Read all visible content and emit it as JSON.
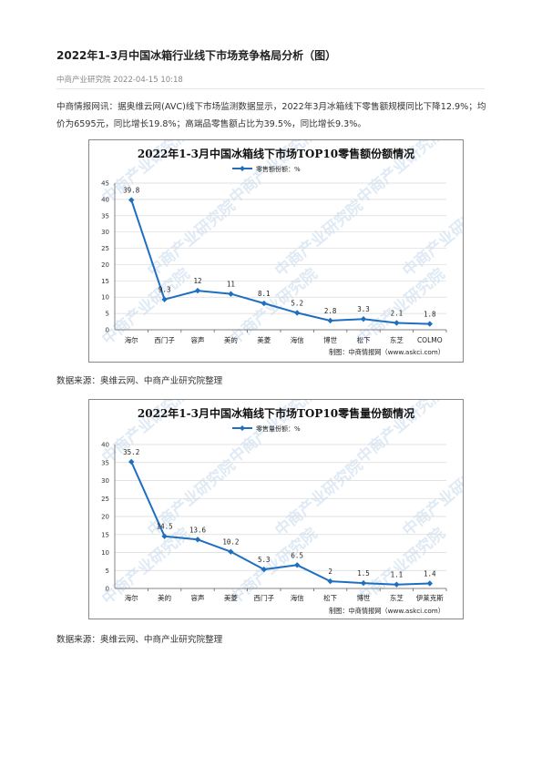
{
  "article": {
    "title": "2022年1-3月中国冰箱行业线下市场竞争格局分析（图）",
    "source_name": "中商产业研究院",
    "date": "2022-04-15 10:18",
    "paragraph": "中商情报网讯：据奥维云网(AVC)线下市场监测数据显示，2022年3月冰箱线下零售额规模同比下降12.9%；均价为6595元，同比增长19.8%；高端品零售额占比为39.5%，同比增长9.3%。",
    "data_source_1": "数据来源：奥维云网、中商产业研究院整理",
    "data_source_2": "数据来源：奥维云网、中商产业研究院整理"
  },
  "watermark": {
    "text": "中商产业研究院"
  },
  "colors": {
    "line": "#1f6fc0",
    "grid": "#d9d9d9",
    "frame": "#888888"
  },
  "chart_data": [
    {
      "type": "line",
      "title": "2022年1-3月中国冰箱线下市场TOP10零售额份额情况",
      "legend": "零售额份额：%",
      "legend_position": "top",
      "categories": [
        "海尔",
        "西门子",
        "容声",
        "美的",
        "美菱",
        "海信",
        "博世",
        "松下",
        "东芝",
        "COLMO"
      ],
      "values": [
        39.8,
        9.3,
        12,
        11,
        8.1,
        5.2,
        2.8,
        3.3,
        2.1,
        1.8
      ],
      "value_labels": [
        "39.8",
        "9.3",
        "12",
        "11",
        "8.1",
        "5.2",
        "2.8",
        "3.3",
        "2.1",
        "1.8"
      ],
      "ylim": [
        0,
        45
      ],
      "yticks": [
        0,
        5,
        10,
        15,
        20,
        25,
        30,
        35,
        40,
        45
      ],
      "grid": true,
      "credit": "制图：中商情报网（www.askci.com）"
    },
    {
      "type": "line",
      "title": "2022年1-3月中国冰箱线下市场TOP10零售量份额情况",
      "legend": "零售量份额：%",
      "legend_position": "top",
      "categories": [
        "海尔",
        "美的",
        "容声",
        "美菱",
        "西门子",
        "海信",
        "松下",
        "博世",
        "东芝",
        "伊莱克斯"
      ],
      "values": [
        35.2,
        14.5,
        13.6,
        10.2,
        5.3,
        6.5,
        2,
        1.5,
        1.1,
        1.4
      ],
      "value_labels": [
        "35.2",
        "14.5",
        "13.6",
        "10.2",
        "5.3",
        "6.5",
        "2",
        "1.5",
        "1.1",
        "1.4"
      ],
      "ylim": [
        0,
        40
      ],
      "yticks": [
        0,
        5,
        10,
        15,
        20,
        25,
        30,
        35,
        40
      ],
      "grid": true,
      "credit": "制图：中商情报网（www.askci.com）"
    }
  ]
}
